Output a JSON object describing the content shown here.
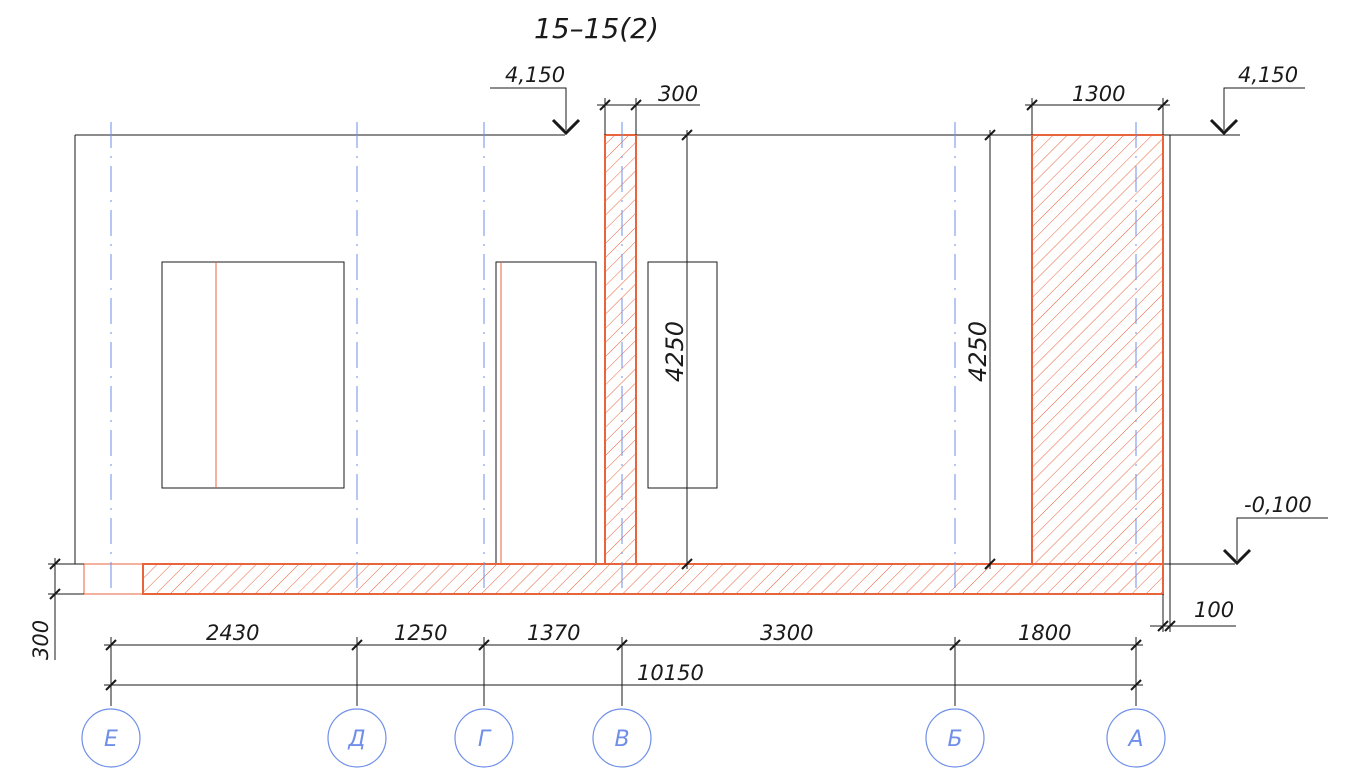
{
  "title": "15–15(2)",
  "levels": {
    "top_left": "4,150",
    "top_right": "4,150",
    "bottom_right": "-0,100"
  },
  "dimensions": {
    "wall_thickness": "300",
    "wall_width_right": "1300",
    "height_mid": "4250",
    "height_right": "4250",
    "slab_thickness": "300",
    "offset_100": "100",
    "spans": [
      "2430",
      "1250",
      "1370",
      "3300",
      "1800"
    ],
    "total": "10150"
  },
  "axes": [
    "Е",
    "Д",
    "Г",
    "В",
    "Б",
    "А"
  ],
  "colors": {
    "lines": "#1a1a1a",
    "section_fill": "#e8643c",
    "axis_blue": "#6f8fe8"
  }
}
